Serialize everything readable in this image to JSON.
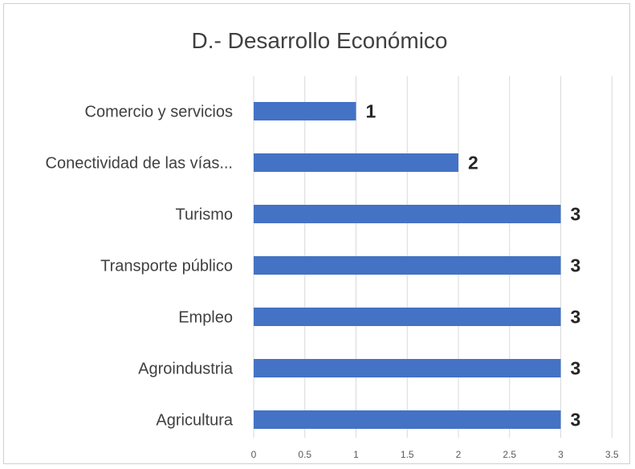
{
  "chart_data": {
    "type": "bar",
    "orientation": "horizontal",
    "title": "D.- Desarrollo Económico",
    "categories": [
      "Comercio y servicios",
      "Conectividad de las vías...",
      "Turismo",
      "Transporte público",
      "Empleo",
      "Agroindustria",
      "Agricultura"
    ],
    "values": [
      1,
      2,
      3,
      3,
      3,
      3,
      3
    ],
    "data_labels": [
      "1",
      "2",
      "3",
      "3",
      "3",
      "3",
      "3"
    ],
    "xlim": [
      0,
      3.5
    ],
    "x_ticks": [
      "0",
      "0.5",
      "1",
      "1.5",
      "2",
      "2.5",
      "3",
      "3.5"
    ],
    "grid": true,
    "bar_color": "#4472c4"
  }
}
